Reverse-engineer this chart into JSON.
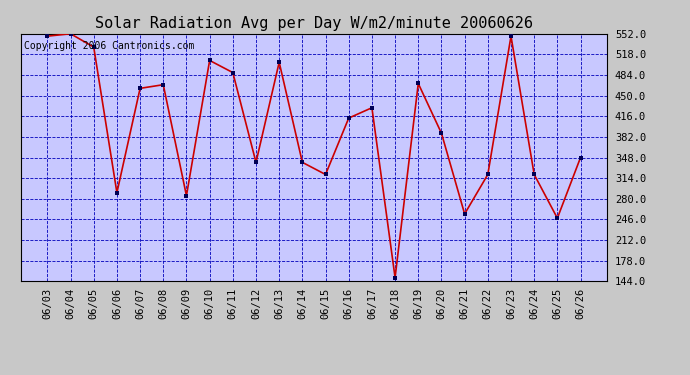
{
  "title": "Solar Radiation Avg per Day W/m2/minute 20060626",
  "copyright": "Copyright 2006 Cantronics.com",
  "dates": [
    "06/03",
    "06/04",
    "06/05",
    "06/06",
    "06/07",
    "06/08",
    "06/09",
    "06/10",
    "06/11",
    "06/12",
    "06/13",
    "06/14",
    "06/15",
    "06/16",
    "06/17",
    "06/18",
    "06/19",
    "06/20",
    "06/21",
    "06/22",
    "06/23",
    "06/24",
    "06/25",
    "06/26"
  ],
  "values": [
    548,
    552,
    530,
    290,
    462,
    468,
    285,
    508,
    488,
    340,
    505,
    340,
    320,
    413,
    430,
    150,
    470,
    388,
    255,
    320,
    548,
    320,
    248,
    348
  ],
  "line_color": "#cc0000",
  "marker_color": "#000055",
  "fig_bg_color": "#c8c8c8",
  "plot_bg_color": "#c8c8ff",
  "grid_color": "#0000bb",
  "title_color": "#000000",
  "copyright_color": "#000000",
  "ymin": 144.0,
  "ymax": 552.0,
  "yticks": [
    144.0,
    178.0,
    212.0,
    246.0,
    280.0,
    314.0,
    348.0,
    382.0,
    416.0,
    450.0,
    484.0,
    518.0,
    552.0
  ],
  "title_fontsize": 11,
  "tick_fontsize": 7.5,
  "copyright_fontsize": 7
}
